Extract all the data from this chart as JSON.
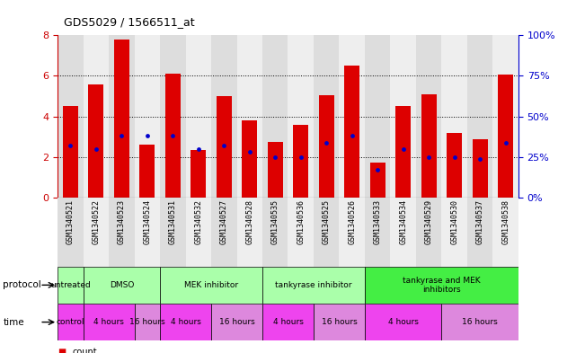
{
  "title": "GDS5029 / 1566511_at",
  "samples": [
    "GSM1340521",
    "GSM1340522",
    "GSM1340523",
    "GSM1340524",
    "GSM1340531",
    "GSM1340532",
    "GSM1340527",
    "GSM1340528",
    "GSM1340535",
    "GSM1340536",
    "GSM1340525",
    "GSM1340526",
    "GSM1340533",
    "GSM1340534",
    "GSM1340529",
    "GSM1340530",
    "GSM1340537",
    "GSM1340538"
  ],
  "counts": [
    4.5,
    5.6,
    7.8,
    2.6,
    6.1,
    2.35,
    5.0,
    3.8,
    2.75,
    3.6,
    5.05,
    6.5,
    1.75,
    4.5,
    5.1,
    3.2,
    2.9,
    6.05
  ],
  "percentile_ranks": [
    32,
    30,
    38,
    38,
    38,
    30,
    32,
    28,
    25,
    25,
    34,
    38,
    17,
    30,
    25,
    25,
    24,
    34
  ],
  "bar_color": "#dd0000",
  "dot_color": "#0000cc",
  "ylim_left": [
    0,
    8
  ],
  "ylim_right": [
    0,
    100
  ],
  "yticks_left": [
    0,
    2,
    4,
    6,
    8
  ],
  "yticks_right": [
    0,
    25,
    50,
    75,
    100
  ],
  "left_axis_color": "#cc0000",
  "right_axis_color": "#0000cc",
  "grid_dotted": [
    2,
    4,
    6
  ],
  "col_bg_even": "#dddddd",
  "col_bg_odd": "#eeeeee",
  "protocol_row": [
    {
      "label": "untreated",
      "start": 0,
      "end": 1,
      "color": "#aaffaa"
    },
    {
      "label": "DMSO",
      "start": 1,
      "end": 4,
      "color": "#aaffaa"
    },
    {
      "label": "MEK inhibitor",
      "start": 4,
      "end": 8,
      "color": "#aaffaa"
    },
    {
      "label": "tankyrase inhibitor",
      "start": 8,
      "end": 12,
      "color": "#aaffaa"
    },
    {
      "label": "tankyrase and MEK\ninhibitors",
      "start": 12,
      "end": 18,
      "color": "#44ee44"
    }
  ],
  "time_row": [
    {
      "label": "control",
      "start": 0,
      "end": 1,
      "color": "#ee44ee"
    },
    {
      "label": "4 hours",
      "start": 1,
      "end": 3,
      "color": "#ee44ee"
    },
    {
      "label": "16 hours",
      "start": 3,
      "end": 4,
      "color": "#dd88dd"
    },
    {
      "label": "4 hours",
      "start": 4,
      "end": 6,
      "color": "#ee44ee"
    },
    {
      "label": "16 hours",
      "start": 6,
      "end": 8,
      "color": "#dd88dd"
    },
    {
      "label": "4 hours",
      "start": 8,
      "end": 10,
      "color": "#ee44ee"
    },
    {
      "label": "16 hours",
      "start": 10,
      "end": 12,
      "color": "#dd88dd"
    },
    {
      "label": "4 hours",
      "start": 12,
      "end": 15,
      "color": "#ee44ee"
    },
    {
      "label": "16 hours",
      "start": 15,
      "end": 18,
      "color": "#dd88dd"
    }
  ],
  "legend_count_color": "#dd0000",
  "legend_dot_color": "#0000cc",
  "background_color": "#ffffff"
}
